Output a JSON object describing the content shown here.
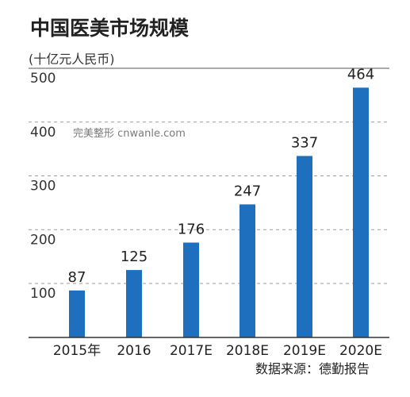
{
  "chart_data": {
    "type": "bar",
    "title": "中国医美市场规模",
    "ylabel": "(十亿元人民币)",
    "categories": [
      "2015年",
      "2016",
      "2017E",
      "2018E",
      "2019E",
      "2020E"
    ],
    "values": [
      87,
      125,
      176,
      247,
      337,
      464
    ],
    "data_labels": [
      "87",
      "125",
      "176",
      "247",
      "337",
      "464"
    ],
    "yticks": [
      100,
      200,
      300,
      400,
      500
    ],
    "ylim": [
      0,
      500
    ],
    "grid": "horizontal dashed",
    "bar_color": "#1f6fbf"
  },
  "watermark": "完美整形 cnwanle.com",
  "source": "数据来源：德勤报告"
}
